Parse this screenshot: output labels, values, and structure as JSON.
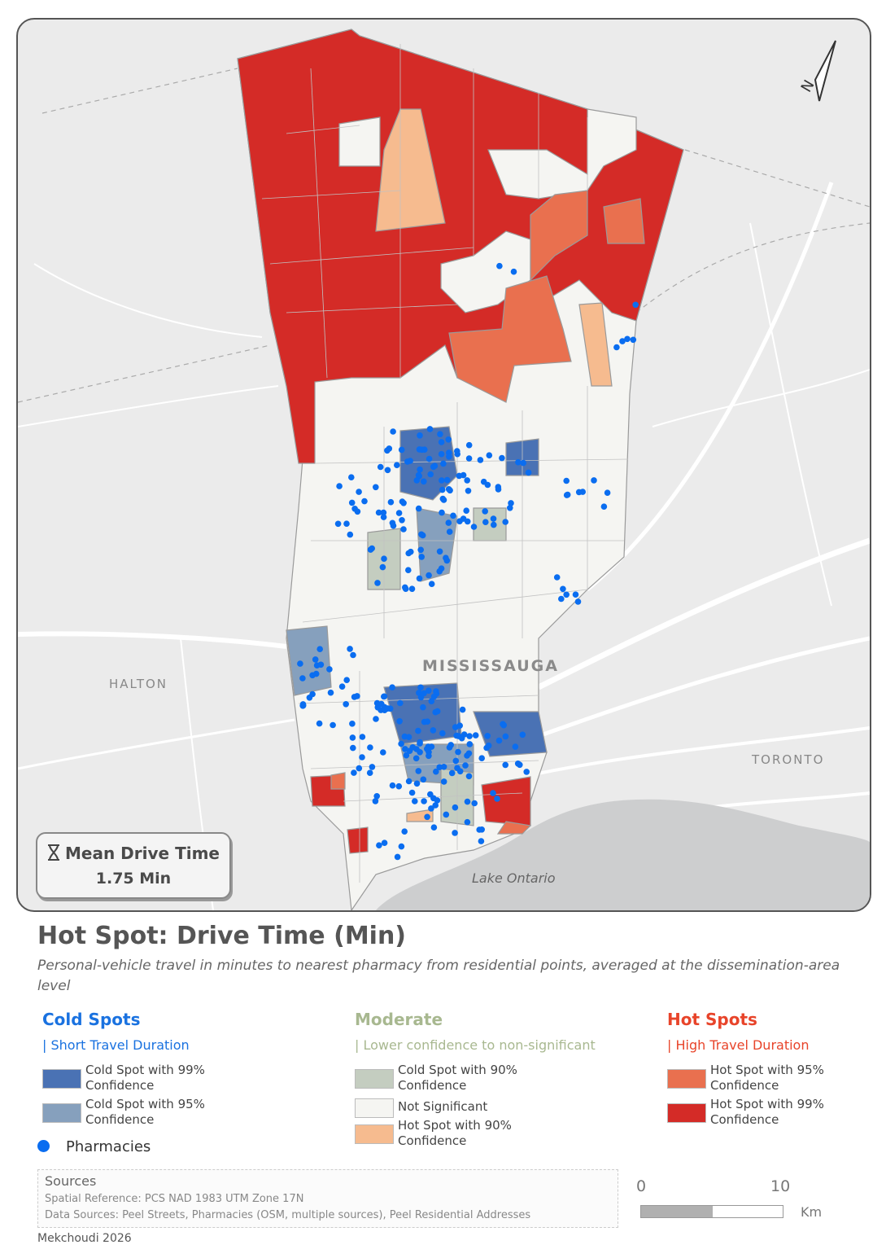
{
  "map": {
    "north_symbol": "N",
    "labels": {
      "mississauga": "MISSISSAUGA",
      "halton": "HALTON",
      "toronto": "TORONTO",
      "lake": "Lake Ontario"
    },
    "mean_drive_time": {
      "icon": "hourglass-icon",
      "title": "Mean Drive Time",
      "value": "1.75 Min"
    }
  },
  "title": "Hot Spot: Drive Time (Min)",
  "subtitle": "Personal-vehicle travel in minutes to nearest pharmacy from residential points, averaged at the dissemination-area level",
  "legend": {
    "cold": {
      "heading": "Cold Spots",
      "subheading": "| Short Travel Duration",
      "color": "#1a72e0",
      "items": [
        {
          "label": "Cold Spot with 99% Confidence",
          "color": "#4a72b4"
        },
        {
          "label": "Cold Spot with 95% Confidence",
          "color": "#86a0bd"
        }
      ]
    },
    "moderate": {
      "heading": "Moderate",
      "subheading": "| Lower confidence to non-significant",
      "color": "#a8b890",
      "items": [
        {
          "label": "Cold Spot with 90% Confidence",
          "color": "#c4cdc0"
        },
        {
          "label": "Not Significant",
          "color": "#f5f5f2"
        },
        {
          "label": "Hot Spot with 90% Confidence",
          "color": "#f6bb8f"
        }
      ]
    },
    "hot": {
      "heading": "Hot Spots",
      "subheading": "| High Travel Duration",
      "color": "#e8442a",
      "items": [
        {
          "label": "Hot Spot with 95% Confidence",
          "color": "#e9704f"
        },
        {
          "label": "Hot Spot with 99% Confidence",
          "color": "#d42b27"
        }
      ]
    },
    "pharmacies": {
      "label": "Pharmacies",
      "color": "#0a6df0"
    }
  },
  "sources": {
    "heading": "Sources",
    "line1": "Spatial Reference: PCS NAD 1983 UTM Zone 17N",
    "line2": "Data Sources: Peel Streets, Pharmacies (OSM, multiple sources), Peel Residential Addresses"
  },
  "credit": "Mekchoudi 2026",
  "scale": {
    "start": "0",
    "end": "10",
    "unit": "Km"
  }
}
